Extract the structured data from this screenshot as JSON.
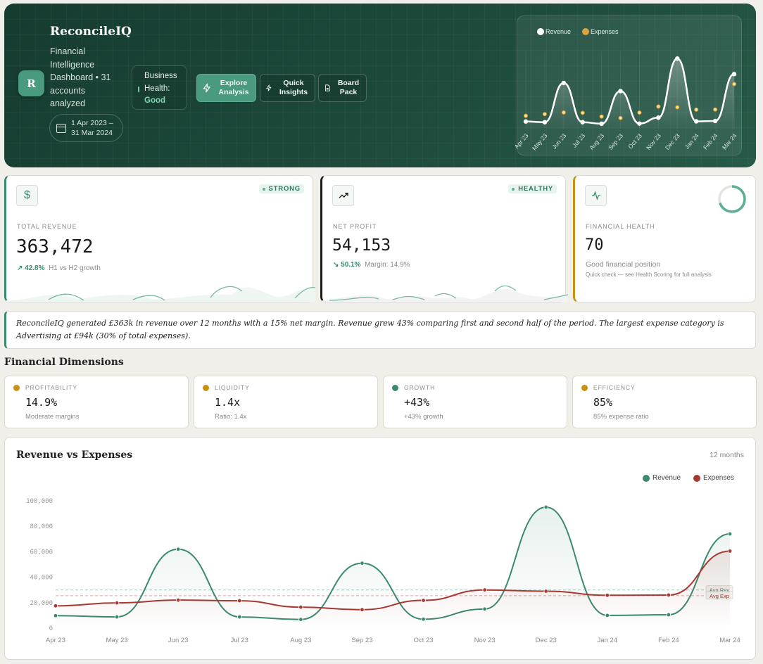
{
  "brand": {
    "name": "ReconcileIQ",
    "logo_letter": "R",
    "subtitle": "Financial Intelligence Dashboard • 31 accounts analyzed",
    "date_range": "1 Apr 2023 – 31 Mar 2024"
  },
  "health": {
    "label": "Business Health:",
    "value": "Good"
  },
  "actions": [
    {
      "label": "Explore Analysis",
      "icon": "lightning-icon"
    },
    {
      "label": "Quick Insights",
      "icon": "lightning-icon"
    },
    {
      "label": "Board Pack",
      "icon": "document-icon"
    }
  ],
  "mini_chart": {
    "legend": [
      "Revenue",
      "Expenses"
    ],
    "months": [
      "Apr 23",
      "May 23",
      "Jun 23",
      "Jul 23",
      "Aug 23",
      "Sep 23",
      "Oct 23",
      "Nov 23",
      "Dec 23",
      "Jan 24",
      "Feb 24",
      "Mar 24"
    ]
  },
  "kpis": [
    {
      "icon": "dollar-icon",
      "badge": "STRONG",
      "label": "TOTAL REVENUE",
      "value": "363,472",
      "change": "↗ 42.8%",
      "change_note": "H1 vs H2 growth",
      "accent": "#3a8a70"
    },
    {
      "icon": "trend-up-icon",
      "badge": "HEALTHY",
      "label": "NET PROFIT",
      "value": "54,153",
      "change": "↘ 50.1%",
      "change_note": "Margin: 14.9%",
      "accent": "#1a1a1a"
    },
    {
      "icon": "pulse-icon",
      "label": "FINANCIAL HEALTH",
      "value": "70",
      "note1": "Good financial position",
      "note2": "Quick check — see Health Scoring for full analysis",
      "accent": "#c9910f",
      "score_fraction": 0.7
    }
  ],
  "summary": "ReconcileIQ generated £363k in revenue over 12 months with a 15% net margin. Revenue grew 43% comparing first and second half of the period. The largest expense category is Advertising at £94k (30% of total expenses).",
  "dimensions_title": "Financial Dimensions",
  "dimensions": [
    {
      "label": "PROFITABILITY",
      "value": "14.9%",
      "sub": "Moderate margins",
      "color": "#c9910f"
    },
    {
      "label": "LIQUIDITY",
      "value": "1.4x",
      "sub": "Ratio: 1.4x",
      "color": "#c9910f"
    },
    {
      "label": "GROWTH",
      "value": "+43%",
      "sub": "+43% growth",
      "color": "#3a8a70"
    },
    {
      "label": "EFFICIENCY",
      "value": "85%",
      "sub": "85% expense ratio",
      "color": "#c9910f"
    }
  ],
  "main_chart": {
    "title": "Revenue vs Expenses",
    "period": "12 months"
  },
  "chart_data": {
    "type": "line",
    "x": [
      "Apr 23",
      "May 23",
      "Jun 23",
      "Jul 23",
      "Aug 23",
      "Sep 23",
      "Oct 23",
      "Nov 23",
      "Dec 23",
      "Jan 24",
      "Feb 24",
      "Mar 24"
    ],
    "series": [
      {
        "name": "Revenue",
        "color": "#3a8a70",
        "values": [
          9800,
          8800,
          62000,
          8800,
          6800,
          51000,
          7000,
          15000,
          95000,
          10000,
          10500,
          74000
        ]
      },
      {
        "name": "Expenses",
        "color": "#a63a32",
        "values": [
          17500,
          19800,
          22000,
          21500,
          16500,
          14500,
          21800,
          30000,
          29000,
          25800,
          26000,
          60500
        ]
      }
    ],
    "yticks": [
      "100,000",
      "80,000",
      "60,000",
      "40,000",
      "20,000",
      "0"
    ],
    "ylim": [
      0,
      100000
    ],
    "reference_lines": [
      {
        "label": "Avg Rev",
        "value": 30000,
        "color": "#3a8a70"
      },
      {
        "label": "Avg Exp",
        "value": 25500,
        "color": "#a63a32"
      }
    ],
    "legend": "top-right",
    "grid": false
  }
}
